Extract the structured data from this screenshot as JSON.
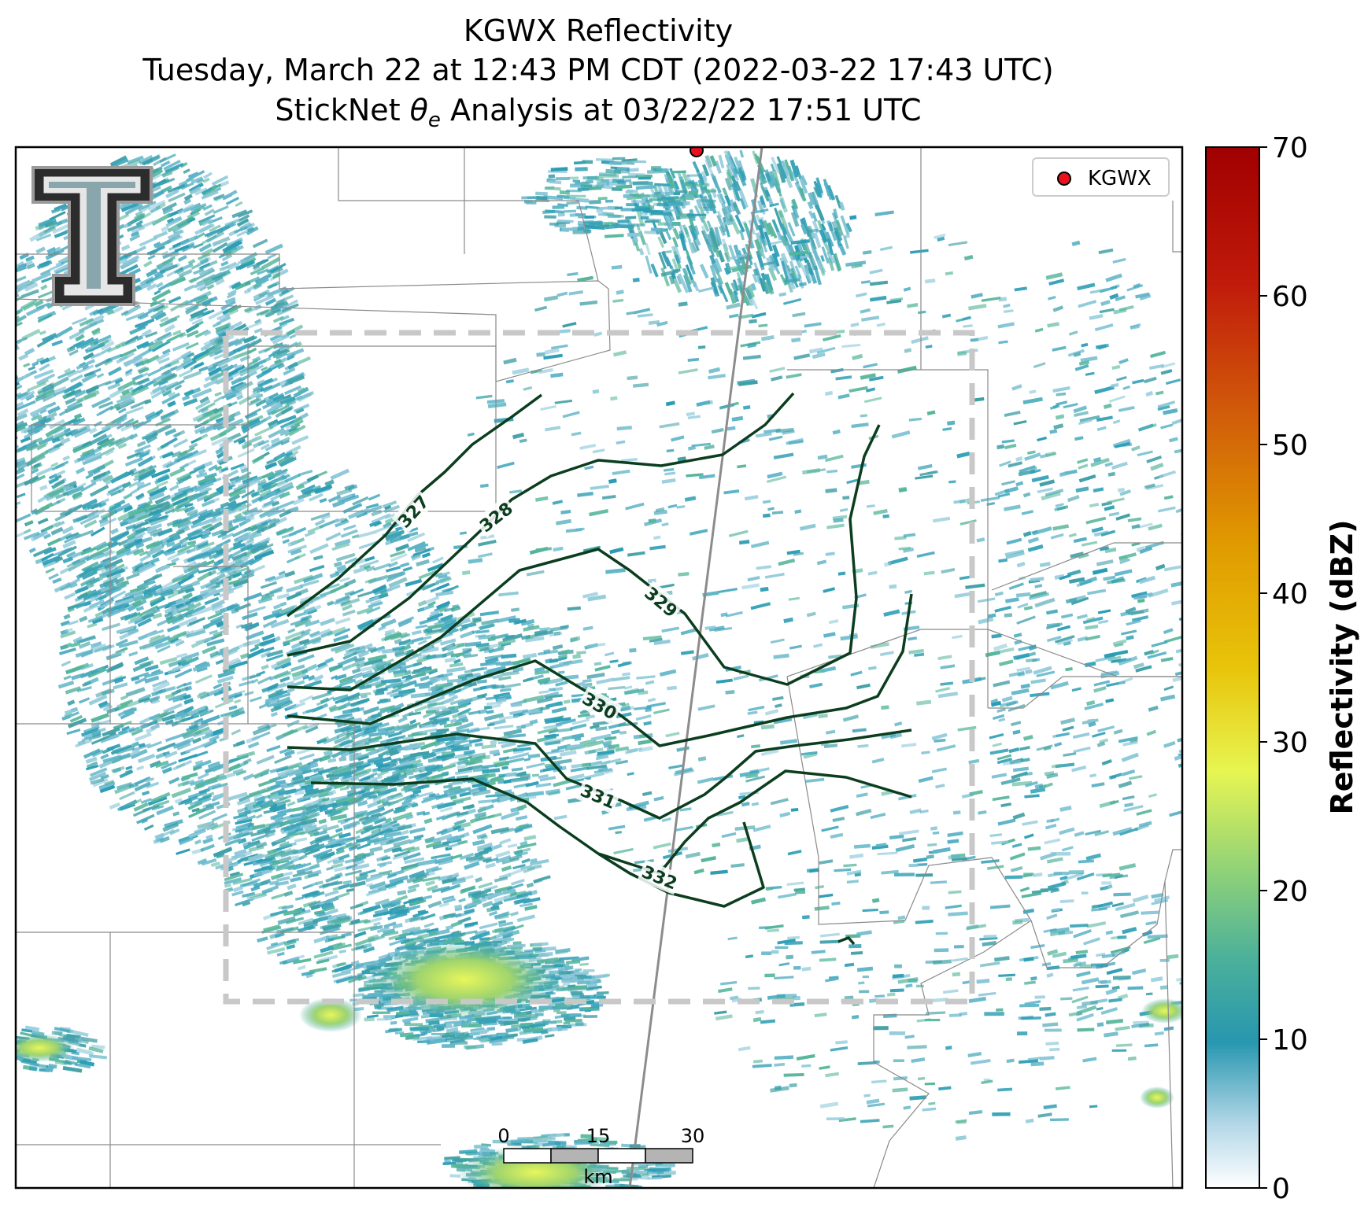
{
  "title": {
    "line1": "KGWX Reflectivity",
    "line2": "Tuesday, March 22 at 12:43 PM CDT (2022-03-22 17:43 UTC)",
    "line3_prefix": "StickNet ",
    "line3_theta": "θ",
    "line3_sub": "e",
    "line3_suffix": " Analysis at 03/22/22 17:51 UTC"
  },
  "legend": {
    "label": "KGWX",
    "marker_color": "#e8101a"
  },
  "colorbar": {
    "label": "Reflectivity (dBZ)",
    "range": [
      0,
      70
    ],
    "ticks": [
      "0",
      "10",
      "20",
      "30",
      "40",
      "50",
      "60",
      "70"
    ]
  },
  "scalebar": {
    "ticks": [
      "0",
      "15",
      "30"
    ],
    "unit": "km"
  },
  "contours": {
    "color": "#0b3d1e",
    "labels": [
      "327",
      "328",
      "329",
      "330",
      "331",
      "332"
    ]
  },
  "colors": {
    "reflectivity_low": "#2a9cb5",
    "reflectivity_mid": "#c8e66a",
    "analysis_box": "#c8c8c8",
    "county_lines": "#777777"
  },
  "icons": {
    "logo": "texas-tech-double-t-logo"
  }
}
